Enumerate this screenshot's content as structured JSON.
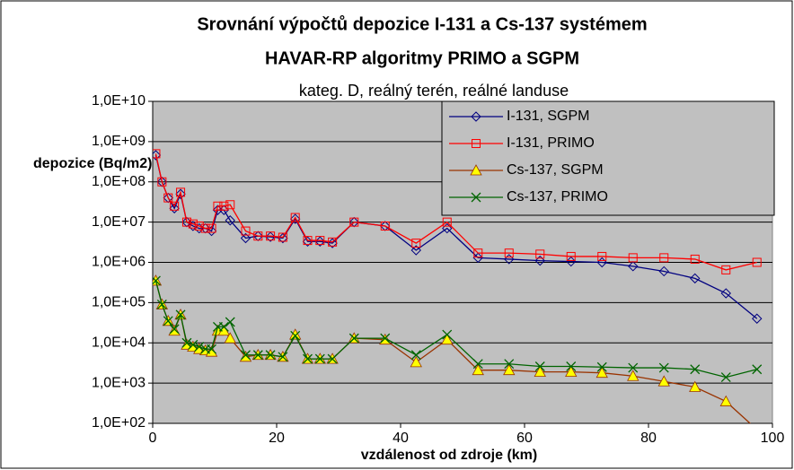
{
  "chart_data": {
    "type": "line",
    "title": "Srovnání výpočtů depozice I-131 a Cs-137 systémem",
    "title_line2": "HAVAR-RP   algoritmy PRIMO a SGPM",
    "subtitle": "kateg. D, reálný terén, reálné landuse",
    "y_label": "depozice (Bq/m2)",
    "x_label": "vzdálenost od zdroje (km)",
    "log_scale_y": true,
    "grid": true,
    "legend_position": "upper right",
    "plot_background": "#c0c0c0",
    "xlim": [
      0,
      100
    ],
    "xticks": [
      0,
      20,
      40,
      60,
      80,
      100
    ],
    "ylim": [
      100,
      10000000000
    ],
    "yticks": [
      {
        "value": 100,
        "label": "1,0E+02"
      },
      {
        "value": 1000,
        "label": "1,0E+03"
      },
      {
        "value": 10000,
        "label": "1,0E+04"
      },
      {
        "value": 100000,
        "label": "1,0E+05"
      },
      {
        "value": 1000000,
        "label": "1,0E+06"
      },
      {
        "value": 10000000,
        "label": "1,0E+07"
      },
      {
        "value": 100000000,
        "label": "1,0E+08"
      },
      {
        "value": 1000000000,
        "label": "1,0E+09"
      },
      {
        "value": 10000000000,
        "label": "1,0E+10"
      }
    ],
    "x": [
      0.5,
      1.5,
      2.5,
      3.5,
      4.5,
      5.5,
      6.5,
      7.5,
      8.5,
      9.5,
      10.5,
      11.5,
      12.5,
      15,
      17,
      19,
      21,
      23,
      25,
      27,
      29,
      32.5,
      37.5,
      42.5,
      47.5,
      52.5,
      57.5,
      62.5,
      67.5,
      72.5,
      77.5,
      82.5,
      87.5,
      92.5,
      97.5
    ],
    "series": [
      {
        "name": "I-131, SGPM",
        "color": "#000080",
        "marker": "diamond",
        "values": [
          460000000,
          100000000,
          40000000,
          22000000,
          50000000,
          10000000,
          8000000,
          7000000,
          7000000,
          6000000,
          20000000,
          20000000,
          11000000,
          4000000,
          4500000,
          4300000,
          4000000,
          12000000,
          3300000,
          3300000,
          3000000,
          10000000,
          8000000,
          2000000,
          7000000,
          1300000,
          1200000,
          1100000,
          1050000,
          1000000,
          800000,
          600000,
          400000,
          170000,
          40000
        ]
      },
      {
        "name": "I-131, PRIMO",
        "color": "#ff0000",
        "marker": "square",
        "values": [
          500000000,
          100000000,
          40000000,
          25000000,
          55000000,
          10000000,
          9000000,
          8000000,
          7000000,
          7000000,
          25000000,
          25000000,
          27000000,
          6000000,
          4500000,
          4500000,
          4200000,
          13000000,
          3500000,
          3500000,
          3200000,
          10000000,
          8000000,
          3000000,
          10000000,
          1700000,
          1700000,
          1600000,
          1400000,
          1400000,
          1300000,
          1300000,
          1200000,
          650000,
          1000000
        ]
      },
      {
        "name": "Cs-137, SGPM",
        "color": "#993300",
        "marker": "triangle",
        "marker_fill": "#ffff00",
        "values": [
          350000,
          90000,
          35000,
          20000,
          50000,
          9000,
          8000,
          7000,
          6500,
          6000,
          20000,
          20000,
          13000,
          4500,
          5000,
          5000,
          4500,
          16000,
          4000,
          4000,
          4000,
          13000,
          12000,
          3300,
          12000,
          2100,
          2100,
          1900,
          1900,
          1800,
          1500,
          1100,
          800,
          350,
          70
        ]
      },
      {
        "name": "Cs-137, PRIMO",
        "color": "#006400",
        "marker": "x",
        "values": [
          350000,
          90000,
          35000,
          22000,
          50000,
          10000,
          9000,
          8000,
          7000,
          7000,
          25000,
          25000,
          33000,
          5000,
          5000,
          5000,
          4500,
          15000,
          4000,
          4000,
          4000,
          13000,
          13000,
          5000,
          16000,
          3000,
          3000,
          2600,
          2600,
          2500,
          2400,
          2400,
          2200,
          1400,
          2200
        ]
      }
    ]
  }
}
